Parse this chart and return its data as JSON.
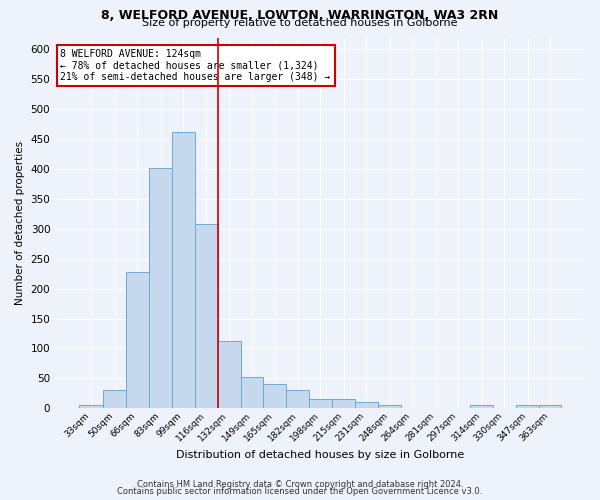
{
  "title1": "8, WELFORD AVENUE, LOWTON, WARRINGTON, WA3 2RN",
  "title2": "Size of property relative to detached houses in Golborne",
  "xlabel": "Distribution of detached houses by size in Golborne",
  "ylabel": "Number of detached properties",
  "categories": [
    "33sqm",
    "50sqm",
    "66sqm",
    "83sqm",
    "99sqm",
    "116sqm",
    "132sqm",
    "149sqm",
    "165sqm",
    "182sqm",
    "198sqm",
    "215sqm",
    "231sqm",
    "248sqm",
    "264sqm",
    "281sqm",
    "297sqm",
    "314sqm",
    "330sqm",
    "347sqm",
    "363sqm"
  ],
  "cat_values": [
    33,
    50,
    66,
    83,
    99,
    116,
    132,
    149,
    165,
    182,
    198,
    215,
    231,
    248,
    264,
    281,
    297,
    314,
    330,
    347,
    363
  ],
  "values": [
    5,
    31,
    228,
    402,
    462,
    308,
    112,
    53,
    40,
    30,
    15,
    15,
    10,
    5,
    0,
    0,
    0,
    5,
    0,
    5,
    5
  ],
  "bar_color": "#c5d8ed",
  "bar_edge_color": "#6aaad4",
  "bg_color": "#eef2fb",
  "grid_color": "#ffffff",
  "vline_x": 124,
  "vline_color": "#cc0000",
  "annotation_line1": "8 WELFORD AVENUE: 124sqm",
  "annotation_line2": "← 78% of detached houses are smaller (1,324)",
  "annotation_line3": "21% of semi-detached houses are larger (348) →",
  "annotation_box_color": "#ffffff",
  "annotation_box_edge": "#cc0000",
  "footer1": "Contains HM Land Registry data © Crown copyright and database right 2024.",
  "footer2": "Contains public sector information licensed under the Open Government Licence v3.0.",
  "ylim": [
    0,
    620
  ],
  "yticks": [
    0,
    50,
    100,
    150,
    200,
    250,
    300,
    350,
    400,
    450,
    500,
    550,
    600
  ]
}
